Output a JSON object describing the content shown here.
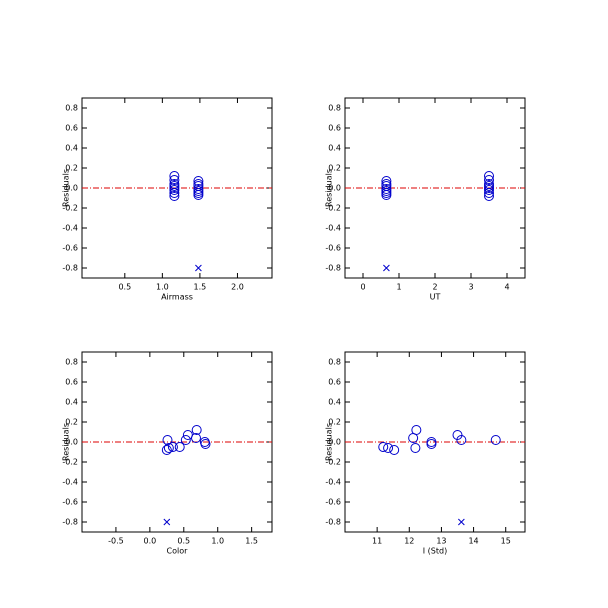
{
  "chart_data": [
    {
      "type": "scatter",
      "xlabel": "Airmass",
      "ylabel": "Residuals",
      "xlim": [
        -0.07,
        2.46
      ],
      "ylim": [
        -0.9,
        0.9
      ],
      "xticks": [
        0.5,
        {
          "value": 1,
          "label": "1.0"
        },
        1.5,
        {
          "value": 2,
          "label": "2.0"
        }
      ],
      "yticks": [
        0.8,
        0.6,
        0.4,
        0.2,
        {
          "value": 0,
          "label": "0.0"
        },
        -0.2,
        -0.4,
        -0.6,
        -0.8
      ],
      "hline": 0,
      "hline_color": "#dd0000",
      "series": [
        {
          "marker": "circle",
          "color": "#0000cc",
          "x": [
            1.16,
            1.16,
            1.16,
            1.16,
            1.16,
            1.16,
            1.16,
            1.16,
            1.48,
            1.48,
            1.48,
            1.48,
            1.48,
            1.48,
            1.48
          ],
          "values": [
            0.12,
            0.08,
            0.04,
            0.02,
            0.0,
            -0.02,
            -0.05,
            -0.08,
            0.07,
            0.04,
            0.02,
            -0.01,
            -0.03,
            -0.05,
            -0.07
          ]
        },
        {
          "marker": "cross",
          "color": "#0000cc",
          "x": [
            1.48
          ],
          "values": [
            -0.8
          ]
        }
      ]
    },
    {
      "type": "scatter",
      "xlabel": "UT",
      "ylabel": "Residuals",
      "xlim": [
        -0.5,
        4.5
      ],
      "ylim": [
        -0.9,
        0.9
      ],
      "xticks": [
        0,
        1,
        2,
        3,
        4
      ],
      "yticks": [
        0.8,
        0.6,
        0.4,
        0.2,
        {
          "value": 0,
          "label": "0.0"
        },
        -0.2,
        -0.4,
        -0.6,
        -0.8
      ],
      "hline": 0,
      "hline_color": "#dd0000",
      "series": [
        {
          "marker": "circle",
          "color": "#0000cc",
          "x": [
            0.65,
            0.65,
            0.65,
            0.65,
            0.65,
            0.65,
            0.65,
            3.5,
            3.5,
            3.5,
            3.5,
            3.5,
            3.5,
            3.5,
            3.5
          ],
          "values": [
            0.07,
            0.04,
            0.02,
            -0.01,
            -0.03,
            -0.05,
            -0.07,
            0.12,
            0.08,
            0.04,
            0.02,
            0.0,
            -0.02,
            -0.05,
            -0.08
          ]
        },
        {
          "marker": "cross",
          "color": "#0000cc",
          "x": [
            0.65
          ],
          "values": [
            -0.8
          ]
        }
      ]
    },
    {
      "type": "scatter",
      "xlabel": "Color",
      "ylabel": "Residuals",
      "xlim": [
        -1,
        1.8
      ],
      "ylim": [
        -0.9,
        0.9
      ],
      "xticks": [
        -0.5,
        {
          "value": 0,
          "label": "0.0"
        },
        0.5,
        {
          "value": 1,
          "label": "1.0"
        },
        1.5
      ],
      "yticks": [
        0.8,
        0.6,
        0.4,
        0.2,
        {
          "value": 0,
          "label": "0.0"
        },
        -0.2,
        -0.4,
        -0.6,
        -0.8
      ],
      "hline": 0,
      "hline_color": "#dd0000",
      "series": [
        {
          "marker": "circle",
          "color": "#0000cc",
          "x": [
            0.26,
            0.25,
            0.28,
            0.34,
            0.44,
            0.53,
            0.56,
            0.69,
            0.68,
            0.82,
            0.81
          ],
          "values": [
            0.02,
            -0.08,
            -0.06,
            -0.05,
            -0.05,
            0.02,
            0.07,
            0.12,
            0.04,
            -0.02,
            0.0
          ]
        },
        {
          "marker": "cross",
          "color": "#0000cc",
          "x": [
            0.25
          ],
          "values": [
            -0.8
          ]
        }
      ]
    },
    {
      "type": "scatter",
      "xlabel": "I (Std)",
      "ylabel": "Residuals",
      "xlim": [
        10,
        15.6
      ],
      "ylim": [
        -0.9,
        0.9
      ],
      "xticks": [
        11,
        12,
        13,
        14,
        15
      ],
      "yticks": [
        0.8,
        0.6,
        0.4,
        0.2,
        {
          "value": 0,
          "label": "0.0"
        },
        -0.2,
        -0.4,
        -0.6,
        -0.8
      ],
      "hline": 0,
      "hline_color": "#dd0000",
      "series": [
        {
          "marker": "circle",
          "color": "#0000cc",
          "x": [
            11.19,
            11.34,
            11.53,
            12.12,
            12.22,
            12.19,
            12.69,
            12.69,
            13.5,
            13.62,
            14.69
          ],
          "values": [
            -0.05,
            -0.06,
            -0.08,
            0.04,
            0.12,
            -0.06,
            -0.02,
            0.0,
            0.07,
            0.02,
            0.02
          ]
        },
        {
          "marker": "cross",
          "color": "#0000cc",
          "x": [
            13.62
          ],
          "values": [
            -0.8
          ]
        }
      ]
    }
  ]
}
